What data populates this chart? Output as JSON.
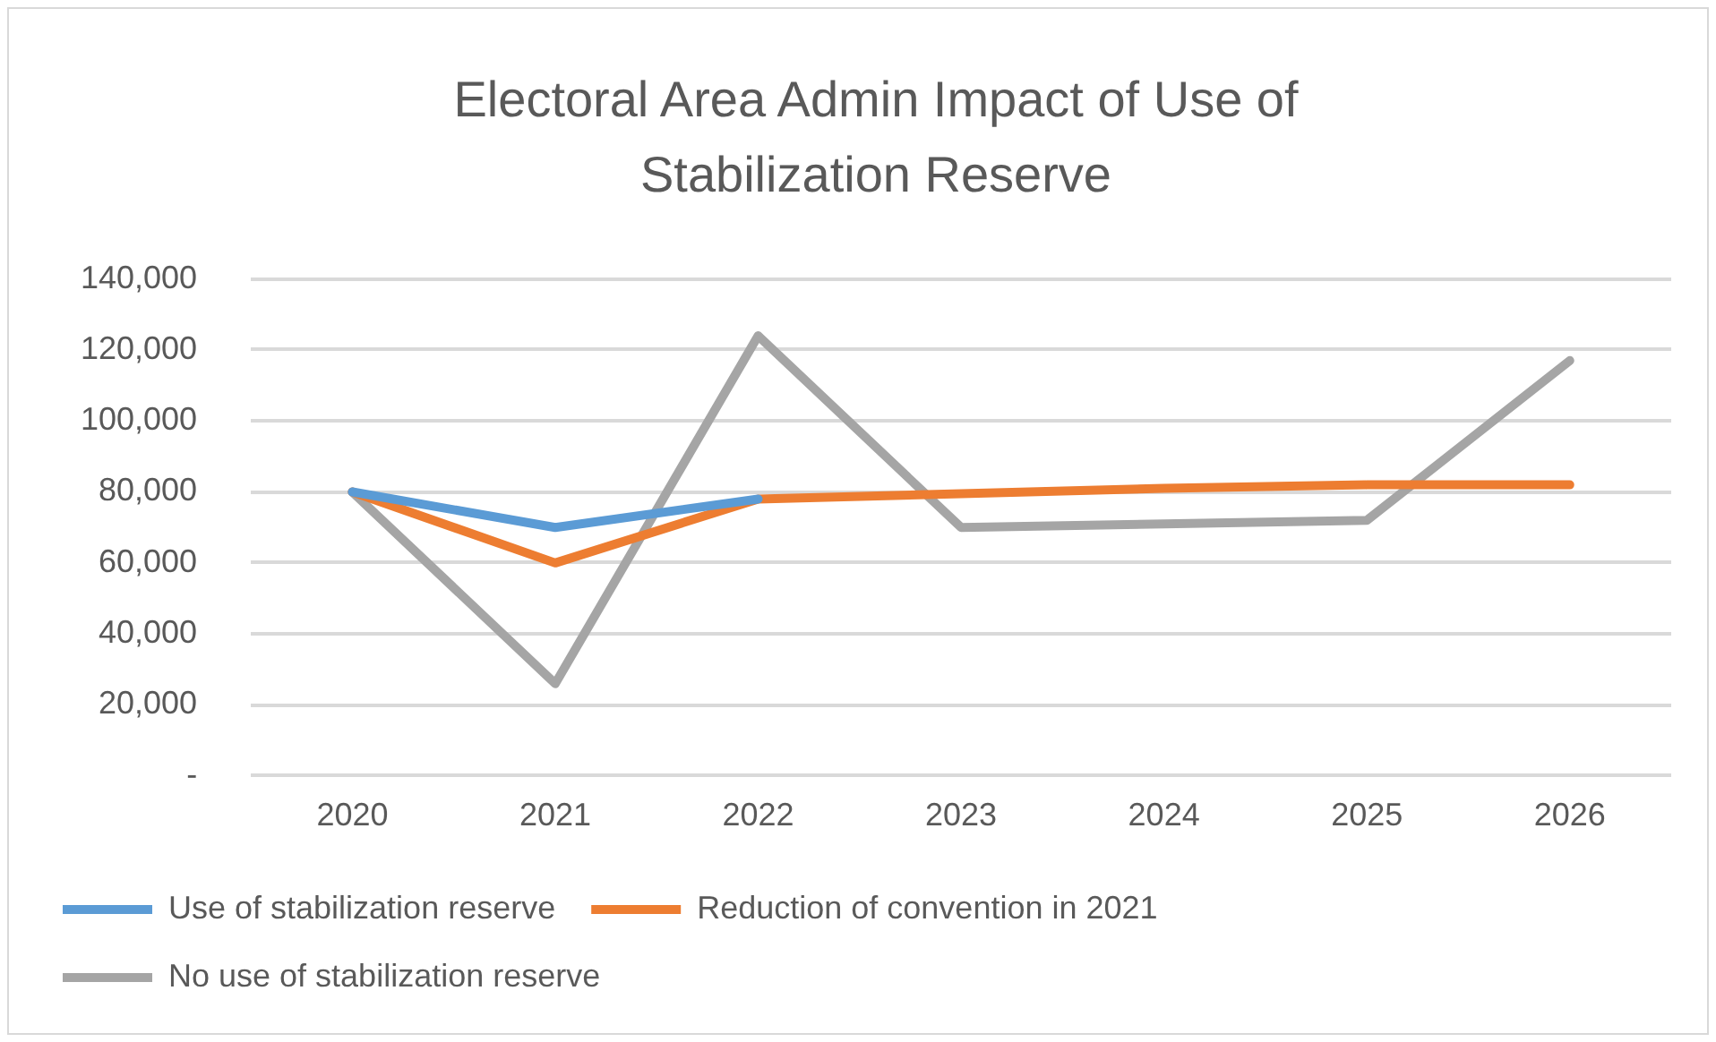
{
  "chart_data": {
    "type": "line",
    "title": "Electoral Area Admin Impact of Use of Stabilization Reserve",
    "categories": [
      "2020",
      "2021",
      "2022",
      "2023",
      "2024",
      "2025",
      "2026"
    ],
    "series": [
      {
        "name": "Use of stabilization reserve",
        "color": "#5b9bd5",
        "values": [
          80000,
          70000,
          78000,
          null,
          null,
          null,
          null
        ]
      },
      {
        "name": "Reduction of convention in 2021",
        "color": "#ed7d31",
        "values": [
          80000,
          60000,
          78000,
          79500,
          81000,
          82000,
          82000
        ]
      },
      {
        "name": "No use of stabilization reserve",
        "color": "#a5a5a5",
        "values": [
          80000,
          26000,
          124000,
          70000,
          71000,
          72000,
          117000
        ]
      }
    ],
    "ylim": [
      0,
      140000
    ],
    "yticks": [
      {
        "value": 0,
        "label": "-"
      },
      {
        "value": 20000,
        "label": "20,000"
      },
      {
        "value": 40000,
        "label": "40,000"
      },
      {
        "value": 60000,
        "label": "60,000"
      },
      {
        "value": 80000,
        "label": "80,000"
      },
      {
        "value": 100000,
        "label": "100,000"
      },
      {
        "value": 120000,
        "label": "120,000"
      },
      {
        "value": 140000,
        "label": "140,000"
      }
    ],
    "grid": "y",
    "legend": "bottom",
    "marker": "none",
    "line_style": "solid"
  }
}
